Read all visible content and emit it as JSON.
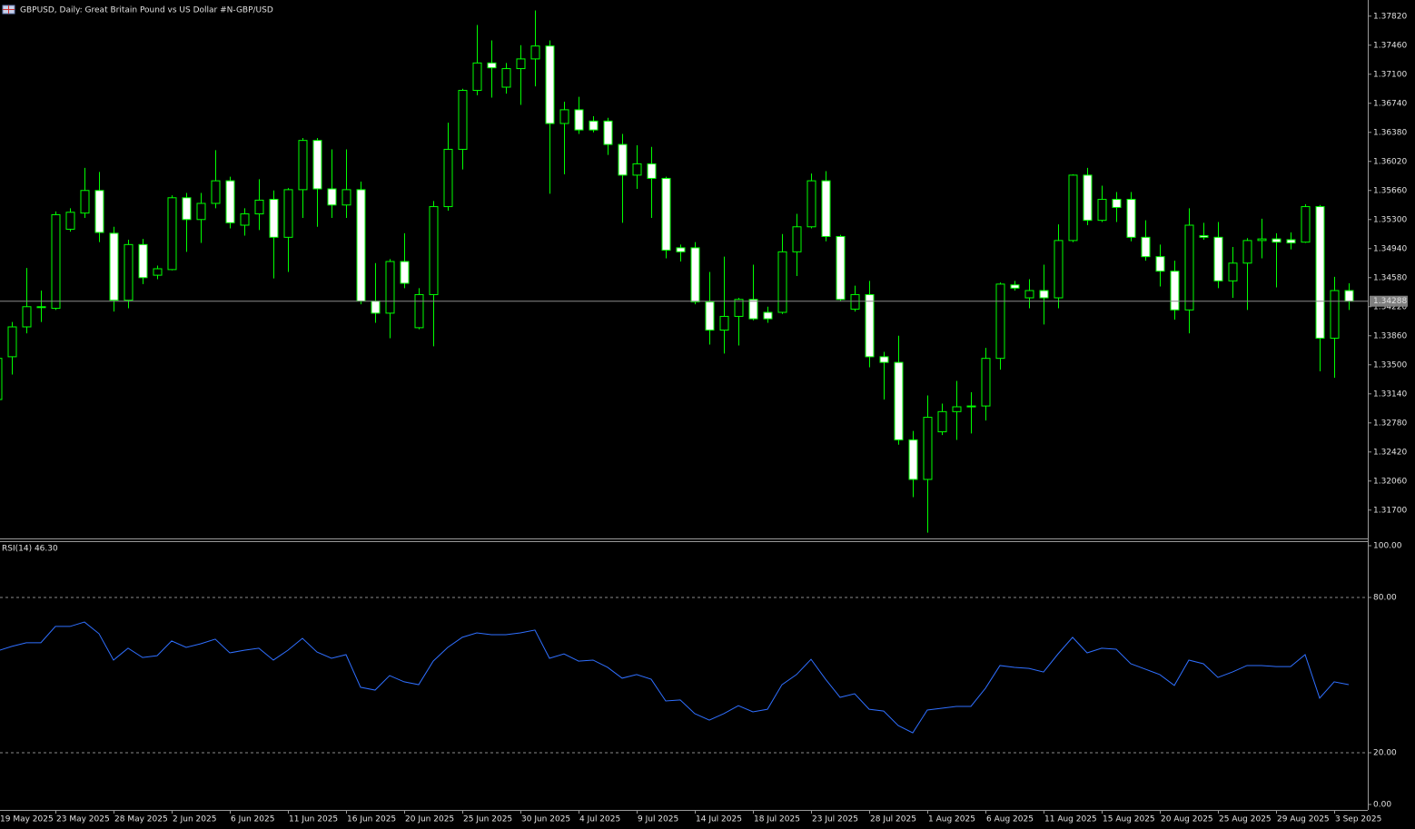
{
  "chart_data": [
    {
      "type": "candlestick",
      "title": "GBPUSD, Daily:  Great Britain Pound vs US Dollar #N-GBP/USD",
      "categories": [
        "19 May 2025",
        null,
        null,
        null,
        "23 May 2025",
        null,
        null,
        null,
        "28 May 2025",
        null,
        null,
        null,
        "2 Jun 2025",
        null,
        null,
        null,
        "6 Jun 2025",
        null,
        null,
        null,
        "11 Jun 2025",
        null,
        null,
        null,
        "16 Jun 2025",
        null,
        null,
        null,
        "20 Jun 2025",
        null,
        null,
        null,
        "25 Jun 2025",
        null,
        null,
        null,
        "30 Jun 2025",
        null,
        null,
        null,
        "4 Jul 2025",
        null,
        null,
        null,
        "9 Jul 2025",
        null,
        null,
        null,
        "14 Jul 2025",
        null,
        null,
        null,
        "18 Jul 2025",
        null,
        null,
        null,
        "23 Jul 2025",
        null,
        null,
        null,
        "28 Jul 2025",
        null,
        null,
        null,
        "1 Aug 2025",
        null,
        null,
        null,
        "6 Aug 2025",
        null,
        null,
        null,
        "11 Aug 2025",
        null,
        null,
        null,
        "15 Aug 2025",
        null,
        null,
        null,
        "20 Aug 2025",
        null,
        null,
        null,
        "25 Aug 2025",
        null,
        null,
        null,
        "29 Aug 2025",
        null,
        null,
        null,
        "3 Sep 2025",
        null
      ],
      "open": [
        1.3307,
        1.336,
        1.3397,
        1.3421,
        1.342,
        1.3518,
        1.3538,
        1.3566,
        1.3513,
        1.343,
        1.3499,
        1.3461,
        1.3468,
        1.3557,
        1.353,
        1.355,
        1.3578,
        1.3523,
        1.3537,
        1.3555,
        1.3508,
        1.3567,
        1.3628,
        1.3568,
        1.3548,
        1.3567,
        1.3429,
        1.3414,
        1.3478,
        1.3396,
        1.3437,
        1.3546,
        1.3617,
        1.369,
        1.3724,
        1.3694,
        1.3717,
        1.3729,
        1.3745,
        1.3649,
        1.3666,
        1.3652,
        1.3652,
        1.3623,
        1.3585,
        1.3599,
        1.3581,
        1.3495,
        1.3495,
        1.3428,
        1.3393,
        1.341,
        1.3431,
        1.3415,
        1.3415,
        1.349,
        1.3521,
        1.3578,
        1.3509,
        1.3419,
        1.3437,
        1.336,
        1.3353,
        1.3257,
        1.3208,
        1.3267,
        1.3292,
        1.3298,
        1.3299,
        1.3358,
        1.3449,
        1.3433,
        1.3442,
        1.3433,
        1.3504,
        1.3585,
        1.3529,
        1.3555,
        1.3555,
        1.3508,
        1.3484,
        1.3466,
        1.3418,
        1.351,
        1.3508,
        1.3454,
        1.3476,
        1.3504,
        1.3506,
        1.3505,
        1.3502,
        1.3546,
        1.3383,
        1.3442
      ],
      "high": [
        1.3361,
        1.3403,
        1.347,
        1.3442,
        1.354,
        1.3544,
        1.3594,
        1.3589,
        1.3521,
        1.3505,
        1.3506,
        1.3473,
        1.356,
        1.3563,
        1.3563,
        1.3616,
        1.3583,
        1.3544,
        1.358,
        1.3566,
        1.3569,
        1.3631,
        1.3631,
        1.3617,
        1.3617,
        1.3577,
        1.3476,
        1.3481,
        1.3513,
        1.3445,
        1.3553,
        1.365,
        1.3692,
        1.3771,
        1.3752,
        1.3724,
        1.3746,
        1.3789,
        1.3752,
        1.3676,
        1.3682,
        1.3658,
        1.3656,
        1.3636,
        1.3622,
        1.362,
        1.3583,
        1.3499,
        1.3502,
        1.3465,
        1.3484,
        1.3433,
        1.3474,
        1.3422,
        1.3512,
        1.3537,
        1.3587,
        1.359,
        1.3511,
        1.3448,
        1.3454,
        1.3366,
        1.3386,
        1.3268,
        1.3312,
        1.3302,
        1.333,
        1.3316,
        1.3371,
        1.3452,
        1.3454,
        1.3456,
        1.3474,
        1.3524,
        1.3586,
        1.3594,
        1.3572,
        1.3564,
        1.3564,
        1.3529,
        1.3499,
        1.3479,
        1.3544,
        1.3526,
        1.3527,
        1.3496,
        1.3507,
        1.3531,
        1.3513,
        1.3514,
        1.3549,
        1.3548,
        1.3459,
        1.3451
      ],
      "low": [
        1.3305,
        1.3338,
        1.3389,
        1.3403,
        1.3418,
        1.3515,
        1.3532,
        1.3502,
        1.3416,
        1.342,
        1.345,
        1.3456,
        1.3467,
        1.349,
        1.3501,
        1.3544,
        1.3519,
        1.351,
        1.3517,
        1.3457,
        1.3465,
        1.3532,
        1.3521,
        1.3532,
        1.3532,
        1.3425,
        1.3402,
        1.3383,
        1.3445,
        1.3394,
        1.3373,
        1.3541,
        1.3592,
        1.3684,
        1.3681,
        1.3686,
        1.3672,
        1.3695,
        1.3562,
        1.3586,
        1.3636,
        1.3638,
        1.361,
        1.3526,
        1.3568,
        1.3532,
        1.3482,
        1.3478,
        1.3425,
        1.3375,
        1.3364,
        1.3374,
        1.3405,
        1.3402,
        1.3413,
        1.346,
        1.3519,
        1.3503,
        1.3429,
        1.3416,
        1.3347,
        1.3307,
        1.3251,
        1.3186,
        1.3142,
        1.3263,
        1.3257,
        1.3265,
        1.3281,
        1.3344,
        1.3442,
        1.342,
        1.34,
        1.342,
        1.3502,
        1.3523,
        1.3527,
        1.3527,
        1.3503,
        1.3479,
        1.3447,
        1.3406,
        1.3389,
        1.3505,
        1.3445,
        1.3433,
        1.3418,
        1.3482,
        1.3446,
        1.3493,
        1.3501,
        1.3342,
        1.3334,
        1.3418
      ],
      "close": [
        1.3358,
        1.3397,
        1.3422,
        1.3422,
        1.3536,
        1.3539,
        1.3566,
        1.3514,
        1.343,
        1.3499,
        1.3458,
        1.3469,
        1.3557,
        1.353,
        1.355,
        1.3578,
        1.3526,
        1.3537,
        1.3554,
        1.3508,
        1.3567,
        1.3628,
        1.3568,
        1.3548,
        1.3567,
        1.3429,
        1.3414,
        1.3478,
        1.3451,
        1.3437,
        1.3546,
        1.3617,
        1.369,
        1.3724,
        1.3718,
        1.3717,
        1.3729,
        1.3745,
        1.3649,
        1.3666,
        1.3641,
        1.3641,
        1.3623,
        1.3585,
        1.3599,
        1.3581,
        1.3492,
        1.349,
        1.3428,
        1.3393,
        1.341,
        1.3431,
        1.3407,
        1.3407,
        1.349,
        1.3521,
        1.3578,
        1.3509,
        1.3431,
        1.3437,
        1.336,
        1.3353,
        1.3257,
        1.3208,
        1.3285,
        1.3292,
        1.3298,
        1.3299,
        1.3358,
        1.345,
        1.3445,
        1.3442,
        1.3433,
        1.3504,
        1.3585,
        1.3529,
        1.3555,
        1.3545,
        1.3508,
        1.3484,
        1.3466,
        1.3418,
        1.3523,
        1.3508,
        1.3454,
        1.3476,
        1.3504,
        1.3506,
        1.3502,
        1.3501,
        1.3546,
        1.3383,
        1.3442,
        1.34288
      ],
      "current_price": 1.34288,
      "up_color": "#000000",
      "down_color": "#ffffff",
      "wick_color": "#00ff00",
      "ylim": [
        1.3136,
        1.3802
      ],
      "yticks": [
        {
          "value": 1.3782,
          "label": "1.37820"
        },
        {
          "value": 1.3746,
          "label": "1.37460"
        },
        {
          "value": 1.371,
          "label": "1.37100"
        },
        {
          "value": 1.3674,
          "label": "1.36740"
        },
        {
          "value": 1.3638,
          "label": "1.36380"
        },
        {
          "value": 1.3602,
          "label": "1.36020"
        },
        {
          "value": 1.3566,
          "label": "1.35660"
        },
        {
          "value": 1.353,
          "label": "1.35300"
        },
        {
          "value": 1.3494,
          "label": "1.34940"
        },
        {
          "value": 1.3458,
          "label": "1.34580"
        },
        {
          "value": 1.3422,
          "label": "1.34220"
        },
        {
          "value": 1.3386,
          "label": "1.33860"
        },
        {
          "value": 1.335,
          "label": "1.33500"
        },
        {
          "value": 1.3314,
          "label": "1.33140"
        },
        {
          "value": 1.3278,
          "label": "1.32780"
        },
        {
          "value": 1.3242,
          "label": "1.32420"
        },
        {
          "value": 1.3206,
          "label": "1.32060"
        },
        {
          "value": 1.317,
          "label": "1.31700"
        }
      ]
    },
    {
      "type": "line",
      "title": "RSI(14) 46.30",
      "color": "#2f6fff",
      "values": [
        59.3,
        61.1,
        62.5,
        62.5,
        68.8,
        68.8,
        70.5,
        66.0,
        55.8,
        60.4,
        56.8,
        57.5,
        63.2,
        60.7,
        62.1,
        63.9,
        58.6,
        59.6,
        60.4,
        55.8,
        59.6,
        64.2,
        58.9,
        56.5,
        57.9,
        45.3,
        44.2,
        49.8,
        47.4,
        46.3,
        55.4,
        60.7,
        64.6,
        66.3,
        65.6,
        65.6,
        66.3,
        67.4,
        56.5,
        58.2,
        55.4,
        55.8,
        53.0,
        48.8,
        50.2,
        48.4,
        40.0,
        40.4,
        35.1,
        32.6,
        35.1,
        38.2,
        35.8,
        36.8,
        46.3,
        50.2,
        56.1,
        48.4,
        41.4,
        42.8,
        36.8,
        36.1,
        30.5,
        27.7,
        36.5,
        37.2,
        37.9,
        37.9,
        44.9,
        53.7,
        53.0,
        52.6,
        51.2,
        58.2,
        64.6,
        58.6,
        60.4,
        60.0,
        54.4,
        52.3,
        50.2,
        46.0,
        55.8,
        54.4,
        49.1,
        51.2,
        53.7,
        53.7,
        53.3,
        53.3,
        57.9,
        41.1,
        47.4,
        46.3
      ],
      "ylim": [
        0,
        100
      ],
      "yticks": [
        {
          "value": 100,
          "label": "100.00"
        },
        {
          "value": 80,
          "label": "80.00"
        },
        {
          "value": 20,
          "label": "20.00"
        },
        {
          "value": 0,
          "label": "0.00"
        }
      ]
    }
  ]
}
